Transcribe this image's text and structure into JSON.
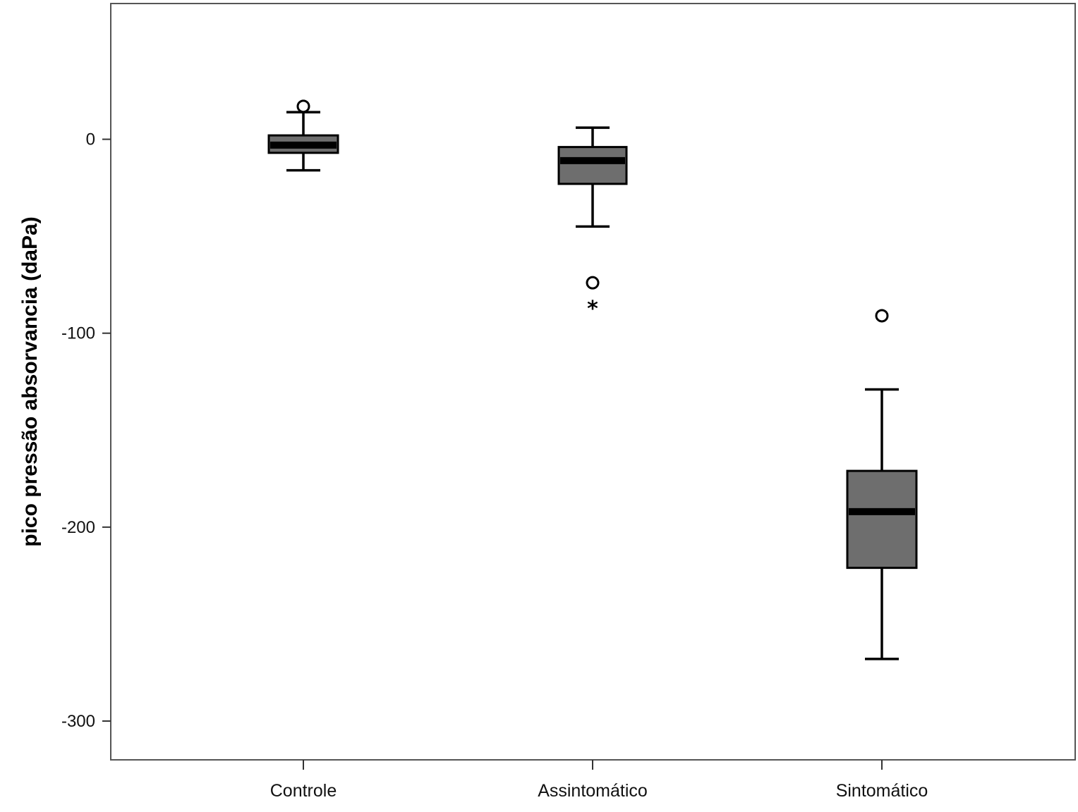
{
  "chart_data": {
    "type": "boxplot",
    "title": "",
    "xlabel": "",
    "ylabel": "pico pressão absorvancia (daPa)",
    "ylim": [
      -320,
      70
    ],
    "yticks": [
      0,
      -100,
      -200,
      -300
    ],
    "ytick_labels": [
      "0",
      "-100",
      "-200",
      "-300"
    ],
    "categories": [
      "Controle",
      "Assintomático",
      "Sintomático"
    ],
    "box_color": "#6e6e6e",
    "boxes": [
      {
        "category": "Controle",
        "whisker_low": -16,
        "q1": -7,
        "median": -3,
        "q3": 2,
        "whisker_high": 14,
        "outliers": [
          {
            "value": 17,
            "marker": "circle"
          }
        ]
      },
      {
        "category": "Assintomático",
        "whisker_low": -45,
        "q1": -23,
        "median": -11,
        "q3": -4,
        "whisker_high": 6,
        "outliers": [
          {
            "value": -74,
            "marker": "circle"
          },
          {
            "value": -86,
            "marker": "star"
          }
        ]
      },
      {
        "category": "Sintomático",
        "whisker_low": -268,
        "q1": -221,
        "median": -192,
        "q3": -171,
        "whisker_high": -129,
        "outliers": [
          {
            "value": -91,
            "marker": "circle"
          }
        ]
      }
    ]
  }
}
